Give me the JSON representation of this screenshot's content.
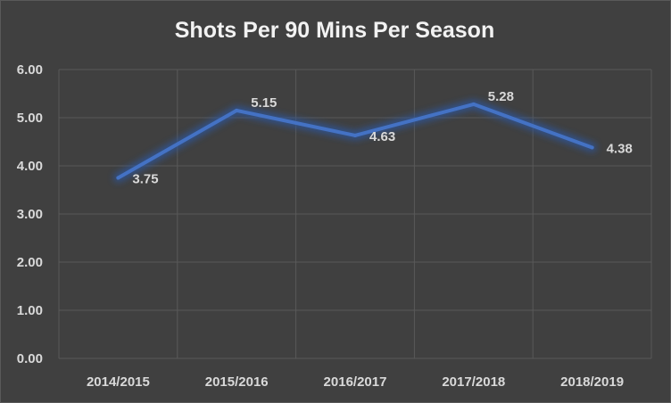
{
  "chart_data": {
    "type": "line",
    "title": "Shots Per 90 Mins Per Season",
    "categories": [
      "2014/2015",
      "2015/2016",
      "2016/2017",
      "2017/2018",
      "2018/2019"
    ],
    "series": [
      {
        "values": [
          3.75,
          5.15,
          4.63,
          5.28,
          4.38
        ]
      }
    ],
    "data_labels": [
      "3.75",
      "5.15",
      "4.63",
      "5.28",
      "4.38"
    ],
    "yticks": [
      "0.00",
      "1.00",
      "2.00",
      "3.00",
      "4.00",
      "5.00",
      "6.00"
    ],
    "ylim": [
      0,
      6
    ],
    "grid": true,
    "legend": "none",
    "colors": {
      "background": "#404040",
      "line": "#4472C4",
      "glow": "#2f5597",
      "grid": "#595959",
      "text": "#d9d9d9",
      "title": "#f2f2f2"
    }
  }
}
